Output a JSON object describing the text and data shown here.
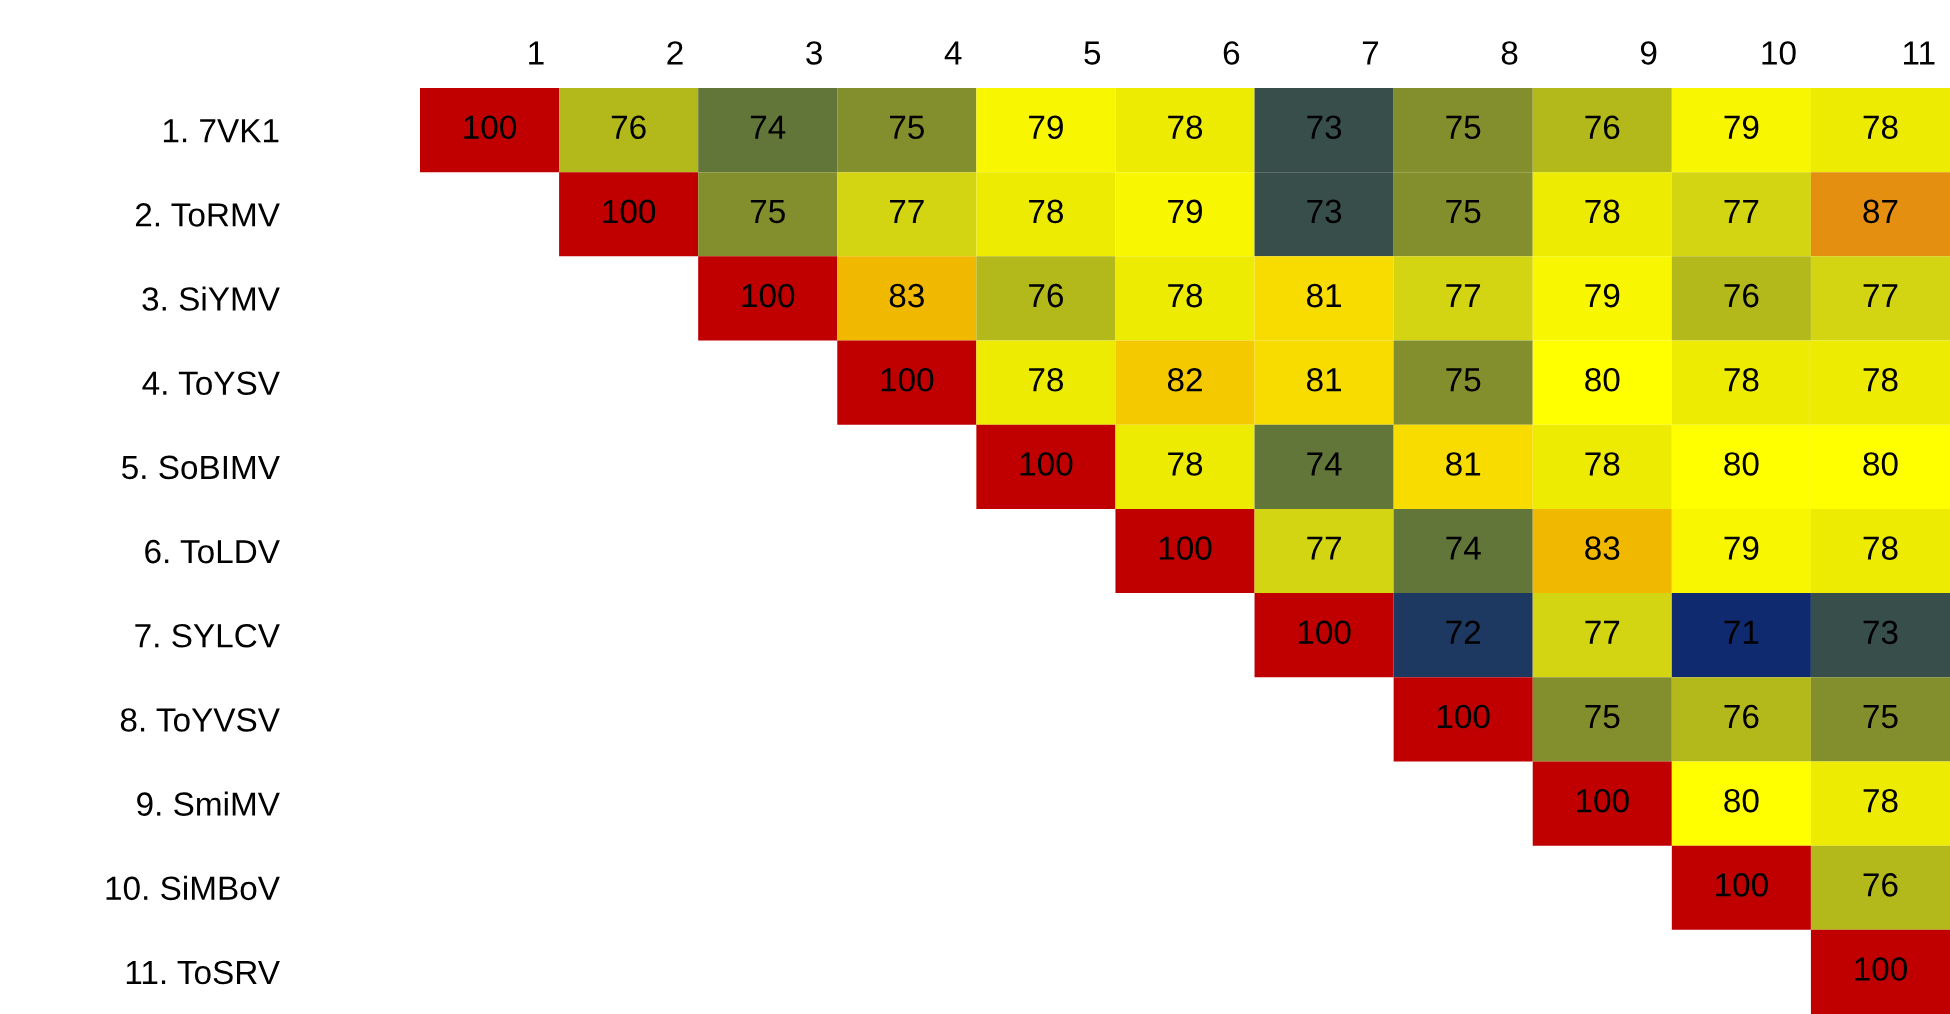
{
  "chart_data": {
    "type": "heatmap",
    "categories": [
      "1",
      "2",
      "3",
      "4",
      "5",
      "6",
      "7",
      "8",
      "9",
      "10",
      "11"
    ],
    "y_categories": [
      "1. 7VK1",
      "2. ToRMV",
      "3. SiYMV",
      "4. ToYSV",
      "5. SoBIMV",
      "6. ToLDV",
      "7. SYLCV",
      "8. ToYVSV",
      "9. SmiMV",
      "10. SiMBoV",
      "11. ToSRV"
    ],
    "cells": [
      [
        100,
        76,
        74,
        75,
        79,
        78,
        73,
        75,
        76,
        79,
        78
      ],
      [
        null,
        100,
        75,
        77,
        78,
        79,
        73,
        75,
        78,
        77,
        87
      ],
      [
        null,
        null,
        100,
        83,
        76,
        78,
        81,
        77,
        79,
        76,
        77
      ],
      [
        null,
        null,
        null,
        100,
        78,
        82,
        81,
        75,
        80,
        78,
        78
      ],
      [
        null,
        null,
        null,
        null,
        100,
        78,
        74,
        81,
        78,
        80,
        80
      ],
      [
        null,
        null,
        null,
        null,
        null,
        100,
        77,
        74,
        83,
        79,
        78
      ],
      [
        null,
        null,
        null,
        null,
        null,
        null,
        100,
        72,
        77,
        71,
        73
      ],
      [
        null,
        null,
        null,
        null,
        null,
        null,
        null,
        100,
        75,
        76,
        75
      ],
      [
        null,
        null,
        null,
        null,
        null,
        null,
        null,
        null,
        100,
        80,
        78
      ],
      [
        null,
        null,
        null,
        null,
        null,
        null,
        null,
        null,
        null,
        100,
        76
      ],
      [
        null,
        null,
        null,
        null,
        null,
        null,
        null,
        null,
        null,
        null,
        100
      ]
    ],
    "data_labels": true
  }
}
